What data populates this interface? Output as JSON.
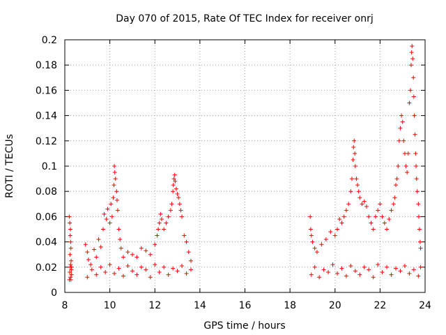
{
  "chart_data": {
    "type": "scatter",
    "title": "Day 070 of 2015, Rate Of TEC Index for receiver onrj",
    "xlabel": "GPS time / hours",
    "ylabel": "ROTI / TECUs",
    "xlim": [
      8,
      24
    ],
    "ylim": [
      0,
      0.2
    ],
    "xticks": [
      "8",
      "10",
      "12",
      "14",
      "16",
      "18",
      "20",
      "22",
      "24"
    ],
    "yticks": [
      "0",
      "0.02",
      "0.04",
      "0.06",
      "0.08",
      "0.1",
      "0.12",
      "0.14",
      "0.16",
      "0.18",
      "0.2"
    ],
    "grid": true,
    "marker": "+",
    "color": "#ff0000",
    "series": [
      {
        "name": "ROTI",
        "points": [
          [
            8.2,
            0.06
          ],
          [
            8.22,
            0.055
          ],
          [
            8.25,
            0.05
          ],
          [
            8.24,
            0.045
          ],
          [
            8.26,
            0.04
          ],
          [
            8.27,
            0.035
          ],
          [
            8.23,
            0.03
          ],
          [
            8.28,
            0.025
          ],
          [
            8.26,
            0.022
          ],
          [
            8.24,
            0.02
          ],
          [
            8.29,
            0.018
          ],
          [
            8.22,
            0.016
          ],
          [
            8.3,
            0.014
          ],
          [
            8.25,
            0.012
          ],
          [
            8.27,
            0.01
          ],
          [
            8.92,
            0.038
          ],
          [
            9.0,
            0.032
          ],
          [
            9.05,
            0.026
          ],
          [
            9.15,
            0.022
          ],
          [
            9.3,
            0.034
          ],
          [
            9.4,
            0.028
          ],
          [
            9.5,
            0.042
          ],
          [
            9.6,
            0.036
          ],
          [
            9.7,
            0.05
          ],
          [
            9.75,
            0.062
          ],
          [
            9.85,
            0.058
          ],
          [
            9.9,
            0.066
          ],
          [
            10.0,
            0.055
          ],
          [
            10.05,
            0.07
          ],
          [
            10.1,
            0.06
          ],
          [
            10.15,
            0.075
          ],
          [
            10.18,
            0.085
          ],
          [
            10.2,
            0.1
          ],
          [
            10.22,
            0.095
          ],
          [
            10.25,
            0.09
          ],
          [
            10.3,
            0.08
          ],
          [
            10.32,
            0.073
          ],
          [
            10.35,
            0.065
          ],
          [
            10.4,
            0.05
          ],
          [
            10.45,
            0.042
          ],
          [
            10.5,
            0.035
          ],
          [
            10.6,
            0.028
          ],
          [
            10.8,
            0.032
          ],
          [
            11.0,
            0.03
          ],
          [
            11.2,
            0.028
          ],
          [
            11.4,
            0.035
          ],
          [
            11.6,
            0.033
          ],
          [
            11.8,
            0.03
          ],
          [
            12.0,
            0.038
          ],
          [
            12.1,
            0.045
          ],
          [
            12.15,
            0.05
          ],
          [
            12.2,
            0.055
          ],
          [
            12.25,
            0.062
          ],
          [
            12.3,
            0.058
          ],
          [
            12.4,
            0.05
          ],
          [
            12.5,
            0.055
          ],
          [
            12.6,
            0.06
          ],
          [
            12.7,
            0.065
          ],
          [
            12.75,
            0.07
          ],
          [
            12.8,
            0.08
          ],
          [
            12.82,
            0.085
          ],
          [
            12.85,
            0.09
          ],
          [
            12.88,
            0.093
          ],
          [
            12.9,
            0.088
          ],
          [
            12.95,
            0.082
          ],
          [
            13.0,
            0.078
          ],
          [
            13.05,
            0.075
          ],
          [
            13.1,
            0.07
          ],
          [
            13.15,
            0.065
          ],
          [
            13.2,
            0.06
          ],
          [
            13.3,
            0.045
          ],
          [
            13.4,
            0.04
          ],
          [
            13.5,
            0.032
          ],
          [
            13.6,
            0.025
          ],
          [
            18.9,
            0.06
          ],
          [
            18.92,
            0.05
          ],
          [
            18.95,
            0.045
          ],
          [
            19.0,
            0.04
          ],
          [
            19.1,
            0.035
          ],
          [
            19.2,
            0.032
          ],
          [
            19.4,
            0.038
          ],
          [
            19.6,
            0.042
          ],
          [
            19.8,
            0.048
          ],
          [
            20.0,
            0.045
          ],
          [
            20.1,
            0.05
          ],
          [
            20.2,
            0.058
          ],
          [
            20.3,
            0.055
          ],
          [
            20.4,
            0.06
          ],
          [
            20.5,
            0.065
          ],
          [
            20.6,
            0.07
          ],
          [
            20.7,
            0.08
          ],
          [
            20.75,
            0.09
          ],
          [
            20.8,
            0.105
          ],
          [
            20.82,
            0.115
          ],
          [
            20.85,
            0.12
          ],
          [
            20.88,
            0.11
          ],
          [
            20.9,
            0.1
          ],
          [
            20.95,
            0.09
          ],
          [
            21.0,
            0.085
          ],
          [
            21.05,
            0.08
          ],
          [
            21.1,
            0.075
          ],
          [
            21.2,
            0.07
          ],
          [
            21.3,
            0.072
          ],
          [
            21.4,
            0.068
          ],
          [
            21.5,
            0.06
          ],
          [
            21.6,
            0.055
          ],
          [
            21.7,
            0.05
          ],
          [
            21.8,
            0.06
          ],
          [
            21.9,
            0.065
          ],
          [
            22.0,
            0.07
          ],
          [
            22.1,
            0.06
          ],
          [
            22.2,
            0.055
          ],
          [
            22.3,
            0.05
          ],
          [
            22.4,
            0.058
          ],
          [
            22.5,
            0.065
          ],
          [
            22.6,
            0.07
          ],
          [
            22.65,
            0.075
          ],
          [
            22.7,
            0.085
          ],
          [
            22.75,
            0.09
          ],
          [
            22.8,
            0.1
          ],
          [
            22.85,
            0.12
          ],
          [
            22.9,
            0.13
          ],
          [
            22.95,
            0.14
          ],
          [
            23.0,
            0.135
          ],
          [
            23.05,
            0.12
          ],
          [
            23.1,
            0.11
          ],
          [
            23.15,
            0.1
          ],
          [
            23.2,
            0.095
          ],
          [
            23.25,
            0.11
          ],
          [
            23.3,
            0.15
          ],
          [
            23.35,
            0.16
          ],
          [
            23.38,
            0.18
          ],
          [
            23.4,
            0.19
          ],
          [
            23.42,
            0.195
          ],
          [
            23.45,
            0.185
          ],
          [
            23.48,
            0.17
          ],
          [
            23.5,
            0.155
          ],
          [
            23.52,
            0.14
          ],
          [
            23.55,
            0.125
          ],
          [
            23.58,
            0.11
          ],
          [
            23.6,
            0.1
          ],
          [
            23.62,
            0.09
          ],
          [
            23.65,
            0.08
          ],
          [
            23.7,
            0.07
          ],
          [
            23.72,
            0.06
          ],
          [
            23.75,
            0.05
          ],
          [
            23.78,
            0.04
          ],
          [
            23.8,
            0.035
          ]
        ],
        "band_points": [
          [
            8.2,
            0.01
          ],
          [
            8.3,
            0.02
          ],
          [
            9.0,
            0.012
          ],
          [
            9.2,
            0.018
          ],
          [
            9.4,
            0.014
          ],
          [
            9.6,
            0.02
          ],
          [
            9.8,
            0.016
          ],
          [
            10.0,
            0.022
          ],
          [
            10.2,
            0.015
          ],
          [
            10.4,
            0.019
          ],
          [
            10.6,
            0.013
          ],
          [
            10.8,
            0.021
          ],
          [
            11.0,
            0.017
          ],
          [
            11.2,
            0.014
          ],
          [
            11.4,
            0.02
          ],
          [
            11.6,
            0.018
          ],
          [
            11.8,
            0.012
          ],
          [
            12.0,
            0.022
          ],
          [
            12.2,
            0.016
          ],
          [
            12.4,
            0.02
          ],
          [
            12.6,
            0.014
          ],
          [
            12.8,
            0.019
          ],
          [
            13.0,
            0.017
          ],
          [
            13.2,
            0.021
          ],
          [
            13.4,
            0.015
          ],
          [
            13.6,
            0.018
          ],
          [
            18.95,
            0.014
          ],
          [
            19.1,
            0.02
          ],
          [
            19.3,
            0.012
          ],
          [
            19.5,
            0.018
          ],
          [
            19.7,
            0.016
          ],
          [
            19.9,
            0.022
          ],
          [
            20.1,
            0.015
          ],
          [
            20.3,
            0.019
          ],
          [
            20.5,
            0.013
          ],
          [
            20.7,
            0.021
          ],
          [
            20.9,
            0.017
          ],
          [
            21.1,
            0.014
          ],
          [
            21.3,
            0.02
          ],
          [
            21.5,
            0.018
          ],
          [
            21.7,
            0.012
          ],
          [
            21.9,
            0.022
          ],
          [
            22.1,
            0.016
          ],
          [
            22.3,
            0.02
          ],
          [
            22.5,
            0.014
          ],
          [
            22.7,
            0.019
          ],
          [
            22.9,
            0.017
          ],
          [
            23.1,
            0.021
          ],
          [
            23.3,
            0.015
          ],
          [
            23.5,
            0.018
          ],
          [
            23.7,
            0.013
          ],
          [
            23.8,
            0.02
          ]
        ]
      }
    ]
  }
}
